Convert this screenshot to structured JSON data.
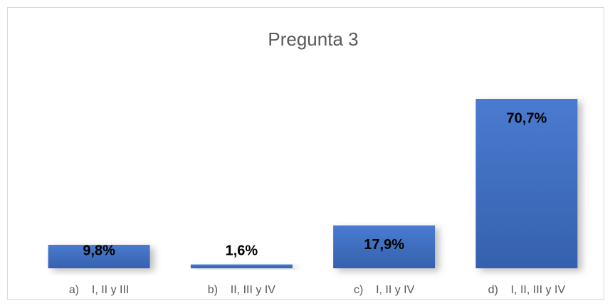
{
  "chart_data": {
    "type": "bar",
    "title": "Pregunta 3",
    "categories": [
      "a)    I, II y III",
      "b)    II, III y IV",
      "c)    I, II y IV",
      "d)    I, II, III y IV"
    ],
    "values": [
      9.8,
      1.6,
      17.9,
      70.7
    ],
    "value_labels": [
      "9,8%",
      "1,6%",
      "17,9%",
      "70,7%"
    ],
    "color": "#4472c4"
  }
}
